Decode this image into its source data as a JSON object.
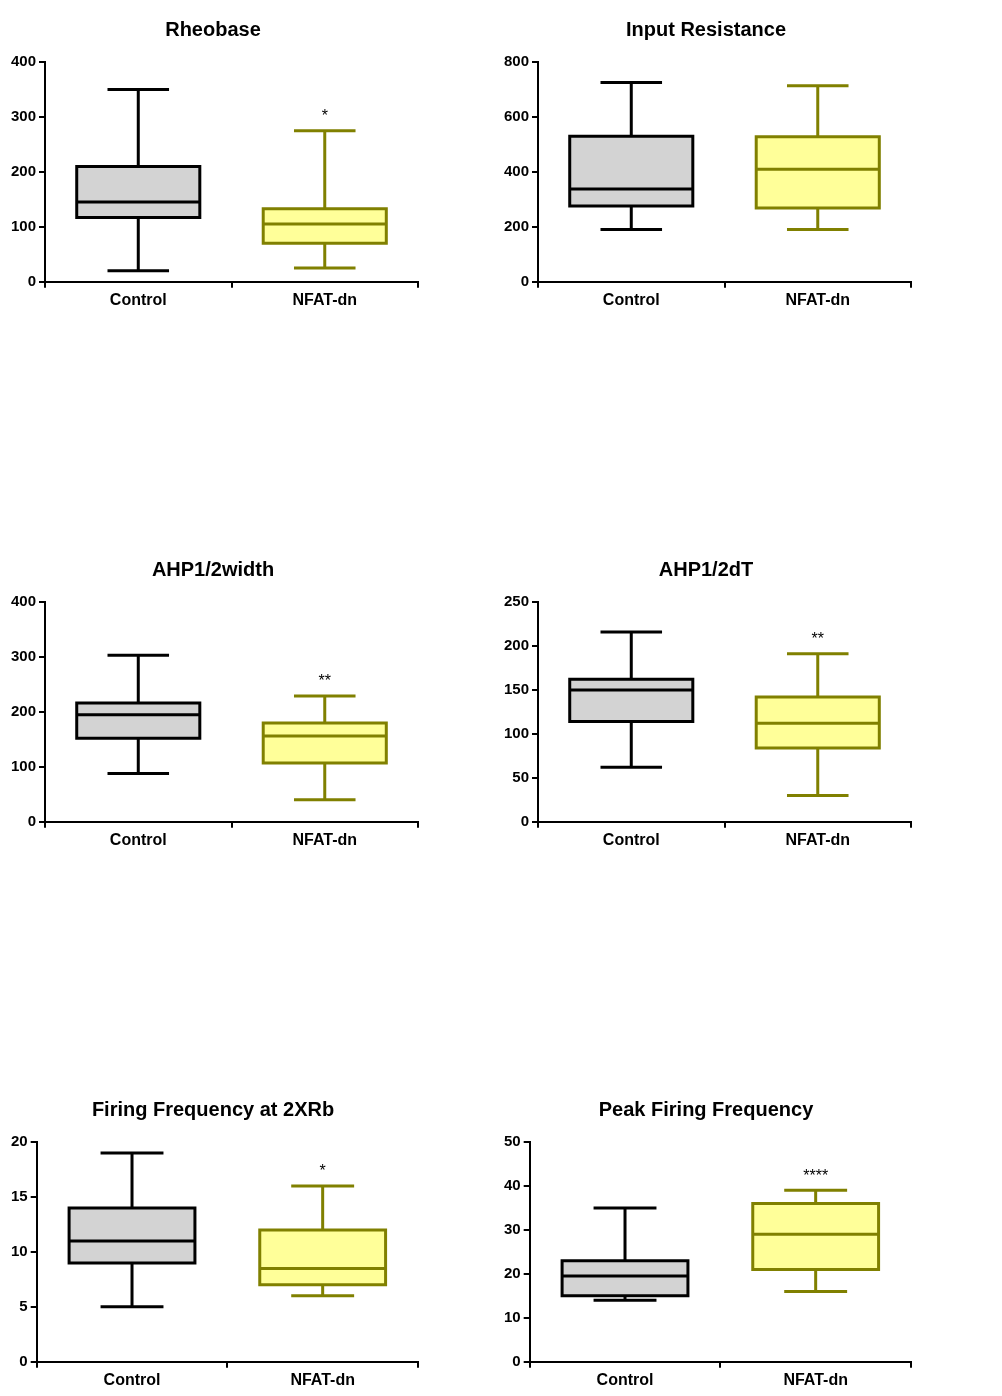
{
  "chart_data": [
    {
      "type": "box",
      "title": "Rheobase",
      "categories": [
        "Control",
        "NFAT-dn"
      ],
      "colors": [
        "#d3d3d3",
        "#ffff99"
      ],
      "boxes": [
        {
          "low": 20,
          "q1": 117,
          "median": 145,
          "q3": 210,
          "high": 350
        },
        {
          "low": 25,
          "q1": 70,
          "median": 105,
          "q3": 133,
          "high": 275
        }
      ],
      "ylim": [
        0,
        400
      ],
      "yticks": [
        0,
        100,
        200,
        300,
        400
      ],
      "grid": false,
      "annotations": [
        {
          "text": "*",
          "x": "NFAT-dn",
          "y": 275
        }
      ]
    },
    {
      "type": "box",
      "title": "Input Resistance",
      "categories": [
        "Control",
        "NFAT-dn"
      ],
      "colors": [
        "#d3d3d3",
        "#ffff99"
      ],
      "boxes": [
        {
          "low": 190,
          "q1": 276,
          "median": 338,
          "q3": 530,
          "high": 725
        },
        {
          "low": 190,
          "q1": 269,
          "median": 410,
          "q3": 528,
          "high": 714
        }
      ],
      "ylim": [
        0,
        800
      ],
      "yticks": [
        0,
        200,
        400,
        600,
        800
      ],
      "grid": false
    },
    {
      "type": "box",
      "title": "AHP1/2width",
      "categories": [
        "Control",
        "NFAT-dn"
      ],
      "colors": [
        "#d3d3d3",
        "#ffff99"
      ],
      "boxes": [
        {
          "low": 88,
          "q1": 152,
          "median": 195,
          "q3": 216,
          "high": 303
        },
        {
          "low": 40,
          "q1": 107,
          "median": 156,
          "q3": 180,
          "high": 229
        }
      ],
      "ylim": [
        0,
        400
      ],
      "yticks": [
        0,
        100,
        200,
        300,
        400
      ],
      "grid": false,
      "annotations": [
        {
          "text": "**",
          "x": "NFAT-dn",
          "y": 229
        }
      ]
    },
    {
      "type": "box",
      "title": "AHP1/2dT",
      "categories": [
        "Control",
        "NFAT-dn"
      ],
      "colors": [
        "#d3d3d3",
        "#ffff99"
      ],
      "boxes": [
        {
          "low": 62,
          "q1": 114,
          "median": 150,
          "q3": 162,
          "high": 216
        },
        {
          "low": 30,
          "q1": 84,
          "median": 112,
          "q3": 142,
          "high": 191
        }
      ],
      "ylim": [
        0,
        250
      ],
      "yticks": [
        0,
        50,
        100,
        150,
        200,
        250
      ],
      "grid": false,
      "annotations": [
        {
          "text": "**",
          "x": "NFAT-dn",
          "y": 191
        }
      ]
    },
    {
      "type": "box",
      "title": "Firing Frequency at 2XRb",
      "categories": [
        "Control",
        "NFAT-dn"
      ],
      "colors": [
        "#d3d3d3",
        "#ffff99"
      ],
      "boxes": [
        {
          "low": 5,
          "q1": 9,
          "median": 11,
          "q3": 14,
          "high": 19
        },
        {
          "low": 6,
          "q1": 7,
          "median": 8.5,
          "q3": 12,
          "high": 16
        }
      ],
      "ylim": [
        0,
        20
      ],
      "yticks": [
        0,
        5,
        10,
        15,
        20
      ],
      "grid": false,
      "annotations": [
        {
          "text": "*",
          "x": "NFAT-dn",
          "y": 16
        }
      ]
    },
    {
      "type": "box",
      "title": "Peak Firing Frequency",
      "categories": [
        "Control",
        "NFAT-dn"
      ],
      "colors": [
        "#d3d3d3",
        "#ffff99"
      ],
      "boxes": [
        {
          "low": 14,
          "q1": 15,
          "median": 19.5,
          "q3": 23,
          "high": 35
        },
        {
          "low": 16,
          "q1": 21,
          "median": 29,
          "q3": 36,
          "high": 39
        }
      ],
      "ylim": [
        0,
        50
      ],
      "yticks": [
        0,
        10,
        20,
        30,
        40,
        50
      ],
      "grid": false,
      "annotations": [
        {
          "text": "****",
          "x": "NFAT-dn",
          "y": 39
        }
      ]
    }
  ]
}
